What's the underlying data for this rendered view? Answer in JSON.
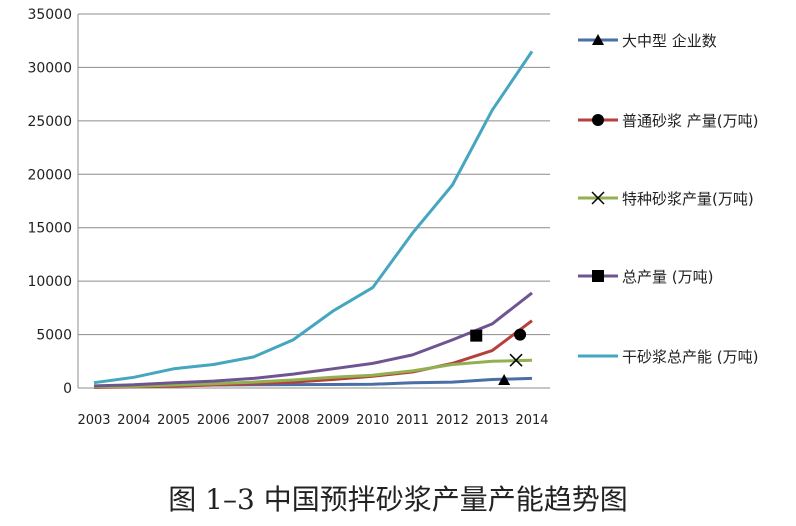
{
  "chart_data": {
    "type": "line",
    "categories": [
      "2003",
      "2004",
      "2005",
      "2006",
      "2007",
      "2008",
      "2009",
      "2010",
      "2011",
      "2012",
      "2013",
      "2014"
    ],
    "ylim": [
      0,
      35000
    ],
    "yticks": [
      "0",
      "5000",
      "10000",
      "15000",
      "20000",
      "25000",
      "30000",
      "35000"
    ],
    "grid": true,
    "legend_position": "right",
    "series": [
      {
        "name": "大中型 企业数",
        "color": "#4a6fa5",
        "marker": "triangle",
        "values": [
          100,
          180,
          250,
          280,
          300,
          320,
          330,
          350,
          500,
          550,
          800,
          900
        ]
      },
      {
        "name": "普通砂浆 产量(万吨)",
        "color": "#b5403d",
        "marker": "circle",
        "values": [
          50,
          100,
          180,
          280,
          400,
          550,
          800,
          1100,
          1500,
          2300,
          3500,
          6300
        ]
      },
      {
        "name": "特种砂浆产量(万吨)",
        "color": "#92b050",
        "marker": "x",
        "values": [
          100,
          150,
          280,
          400,
          550,
          750,
          1000,
          1200,
          1600,
          2200,
          2500,
          2600
        ]
      },
      {
        "name": "总产量 (万吨)",
        "color": "#6e5592",
        "marker": "square",
        "values": [
          200,
          300,
          500,
          650,
          900,
          1300,
          1800,
          2300,
          3100,
          4500,
          6000,
          8900
        ]
      },
      {
        "name": "干砂浆总产能 (万吨)",
        "color": "#45a6bf",
        "marker": "none",
        "values": [
          500,
          1000,
          1800,
          2200,
          2900,
          4500,
          7200,
          9400,
          14500,
          19000,
          26000,
          31500
        ]
      }
    ]
  },
  "caption": "图 1–3  中国预拌砂浆产量产能趋势图"
}
